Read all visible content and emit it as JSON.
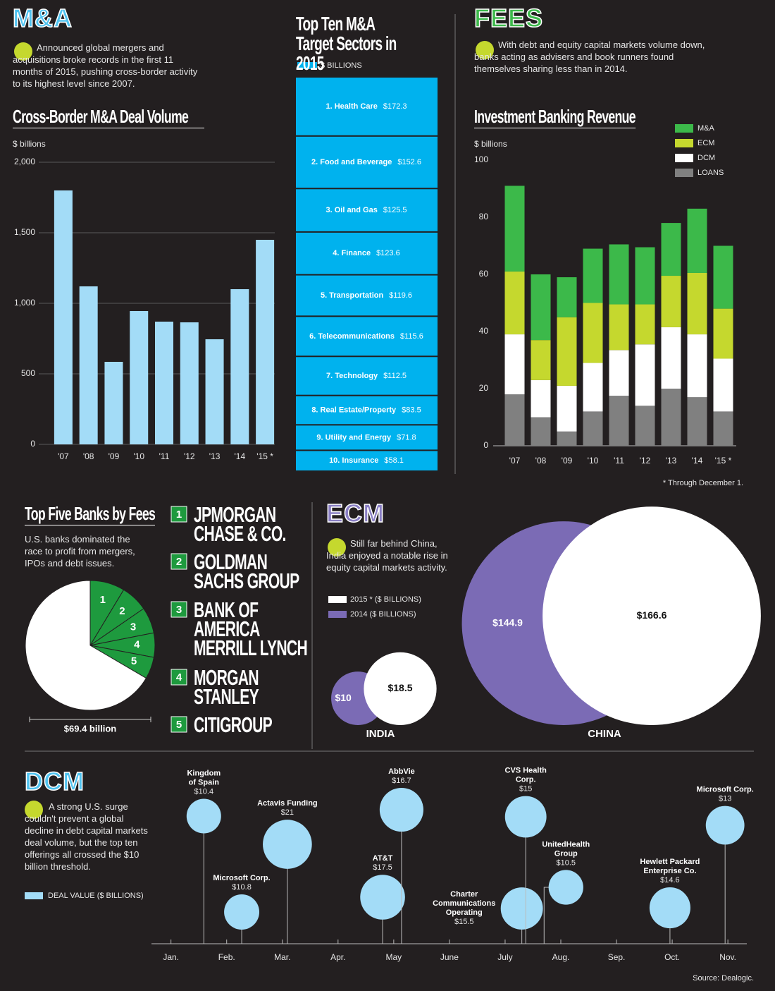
{
  "sections": {
    "ma": {
      "heading": "M&A",
      "text": "Announced global mergers and acquisitions broke records in the first 11 months of 2015, pushing cross-border activity to its highest level since 2007."
    },
    "fees": {
      "heading": "FEES",
      "text": "With debt and equity capital markets volume down, banks acting as advisers and book runners found themselves sharing less than in 2014."
    },
    "ecm": {
      "heading": "ECM",
      "text": "Still far behind China, India enjoyed a notable rise in equity capital markets activity."
    },
    "dcm": {
      "heading": "DCM",
      "text": "A strong U.S. surge couldn't prevent a global decline in debt capital markets deal volume, but the top ten offerings all crossed the $10 billion threshold."
    }
  },
  "source": "Source: Dealogic.",
  "chart_data": [
    {
      "type": "bar",
      "title": "Cross-Border M&A Deal Volume",
      "y_label": "$ billions",
      "categories": [
        "'07",
        "'08",
        "'09",
        "'10",
        "'11",
        "'12",
        "'13",
        "'14",
        "'15 *"
      ],
      "values": [
        1800,
        1120,
        585,
        945,
        870,
        865,
        745,
        1100,
        1450
      ],
      "color": "#a3dcf7",
      "ylim": [
        0,
        2000
      ],
      "yticks": [
        0,
        500,
        {
          "value": 1000,
          "label": "1,000"
        },
        {
          "value": 1500,
          "label": "1,500"
        },
        {
          "value": 2000,
          "label": "2,000"
        }
      ],
      "grid": true
    },
    {
      "type": "block",
      "title": "Top Ten M&A Target Sectors in 2015",
      "legend_label": "$ BILLIONS",
      "color": "#00b2ee",
      "categories": [
        "1. Health Care",
        "2. Food and Beverage",
        "3. Oil and Gas",
        "4. Finance",
        "5. Transportation",
        "6. Telecommunications",
        "7. Technology",
        "8. Real Estate/Property",
        "9. Utility and Energy",
        "10. Insurance"
      ],
      "values": [
        172.3,
        152.6,
        125.5,
        123.6,
        119.6,
        115.6,
        112.5,
        83.5,
        71.8,
        58.1
      ],
      "value_labels": [
        "$172.3",
        "$152.6",
        "$125.5",
        "$123.6",
        "$119.6",
        "$115.6",
        "$112.5",
        "$83.5",
        "$71.8",
        "$58.1"
      ]
    },
    {
      "type": "stacked",
      "title": "Investment Banking Revenue",
      "y_label": "$ billions",
      "note": "* Through December 1.",
      "categories": [
        "'07",
        "'08",
        "'09",
        "'10",
        "'11",
        "'12",
        "'13",
        "'14",
        "'15 *"
      ],
      "series": [
        {
          "name": "LOANS",
          "color": "#808080",
          "values": [
            18,
            10,
            5,
            12,
            17.5,
            14,
            20,
            17,
            12
          ]
        },
        {
          "name": "DCM",
          "color": "#ffffff",
          "values": [
            21,
            13,
            16,
            17,
            16,
            21.5,
            21.5,
            22,
            18.5
          ]
        },
        {
          "name": "ECM",
          "color": "#c5d82e",
          "values": [
            22,
            14,
            24,
            21,
            16,
            14,
            18,
            21.5,
            17.5
          ]
        },
        {
          "name": "M&A",
          "color": "#3cb94a",
          "values": [
            30,
            23,
            14,
            19,
            21,
            20,
            18.5,
            22.5,
            22
          ]
        }
      ],
      "ylim": [
        0,
        100
      ],
      "yticks": [
        0,
        20,
        40,
        60,
        80,
        100
      ],
      "grid": false
    },
    {
      "type": "pie",
      "title": "Top Five Banks by Fees",
      "subtitle": "U.S. banks dominated the race to profit from mergers, IPOs and debt issues.",
      "total_label": "$69.4 billion",
      "categories": [
        "1",
        "2",
        "3",
        "4",
        "5",
        null
      ],
      "values": [
        6.0,
        4.7,
        4.5,
        4.2,
        3.8,
        46.2
      ],
      "colors": [
        "#1e9a3e",
        "#1e9a3e",
        "#1e9a3e",
        "#1e9a3e",
        "#1e9a3e",
        "#ffffff"
      ],
      "banks": [
        {
          "rank": "1",
          "name": [
            "JPMORGAN",
            "CHASE & CO."
          ]
        },
        {
          "rank": "2",
          "name": [
            "GOLDMAN",
            "SACHS GROUP"
          ]
        },
        {
          "rank": "3",
          "name": [
            "BANK OF",
            "AMERICA",
            "MERRILL LYNCH"
          ]
        },
        {
          "rank": "4",
          "name": [
            "MORGAN",
            "STANLEY"
          ]
        },
        {
          "rank": "5",
          "name": [
            "CITIGROUP"
          ]
        }
      ]
    },
    {
      "type": "bubble",
      "categories": [
        "INDIA",
        "CHINA"
      ],
      "series": [
        {
          "name": "2014 ($ BILLIONS)",
          "color": "#7b6bb5",
          "values": [
            10,
            144.9
          ],
          "value_labels": [
            "$10",
            "$144.9"
          ]
        },
        {
          "name": "2015 * ($ BILLIONS)",
          "color": "#ffffff",
          "values": [
            18.5,
            166.6
          ],
          "value_labels": [
            "$18.5",
            "$166.6"
          ]
        }
      ]
    },
    {
      "type": "timeline",
      "legend_label": "DEAL VALUE ($ BILLIONS)",
      "color": "#a3dcf7",
      "labels": [
        [
          "Kingdom",
          "of Spain"
        ],
        [
          "Microsoft Corp."
        ],
        [
          "Actavis Funding"
        ],
        [
          "AT&T"
        ],
        [
          "AbbVie"
        ],
        [
          "Charter",
          "Communications",
          "Operating"
        ],
        [
          "CVS Health",
          "Corp."
        ],
        [
          "UnitedHealth",
          "Group"
        ],
        [
          "Hewlett Packard",
          "Enterprise Co."
        ],
        [
          "Microsoft Corp."
        ]
      ],
      "x": [
        0.59,
        1.27,
        2.09,
        3.8,
        4.14,
        6.3,
        6.37,
        6.7,
        8.96,
        9.95
      ],
      "values": [
        10.4,
        10.8,
        21,
        17.5,
        16.7,
        15.5,
        15,
        10.5,
        14.6,
        13
      ],
      "value_labels": [
        "$10.4",
        "$10.8",
        "$21",
        "$17.5",
        "$16.7",
        "$15.5",
        "$15",
        "$10.5",
        "$14.6",
        "$13"
      ],
      "xlim": [
        -0.35,
        10.34
      ],
      "xticks": [
        {
          "value": 0,
          "label": "Jan."
        },
        {
          "value": 1,
          "label": "Feb."
        },
        {
          "value": 2,
          "label": "Mar."
        },
        {
          "value": 3,
          "label": "Apr."
        },
        {
          "value": 4,
          "label": "May"
        },
        {
          "value": 5,
          "label": "June"
        },
        {
          "value": 6,
          "label": "July"
        },
        {
          "value": 7,
          "label": "Aug."
        },
        {
          "value": 8,
          "label": "Sep."
        },
        {
          "value": 9,
          "label": "Oct."
        },
        {
          "value": 10,
          "label": "Nov."
        }
      ]
    }
  ]
}
